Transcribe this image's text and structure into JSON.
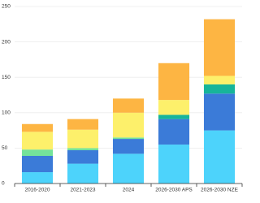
{
  "chart_data": {
    "type": "stacked-bar",
    "categories": [
      "2016-2020",
      "2021-2023",
      "2024",
      "2026-2030 APS",
      "2026-2030 NZE"
    ],
    "series": [
      {
        "color": "#4dd3fb",
        "values": [
          16,
          28,
          42,
          55,
          75
        ]
      },
      {
        "color": "#3b7bd8",
        "values": [
          23,
          19,
          21,
          36,
          52
        ]
      },
      {
        "colors": [
          "#74e39a",
          "#74e39a",
          "#74e39a",
          "#17b59a",
          "#17b59a"
        ],
        "values": [
          9,
          3,
          2,
          6,
          13
        ]
      },
      {
        "color": "#fdf06b",
        "values": [
          25,
          26,
          35,
          21,
          12
        ]
      },
      {
        "color": "#fdb543",
        "values": [
          11,
          15,
          20,
          52,
          80
        ]
      }
    ],
    "ylim": [
      0,
      250
    ],
    "yticks": [
      0,
      50,
      100,
      150,
      200,
      250
    ],
    "grid": true
  }
}
